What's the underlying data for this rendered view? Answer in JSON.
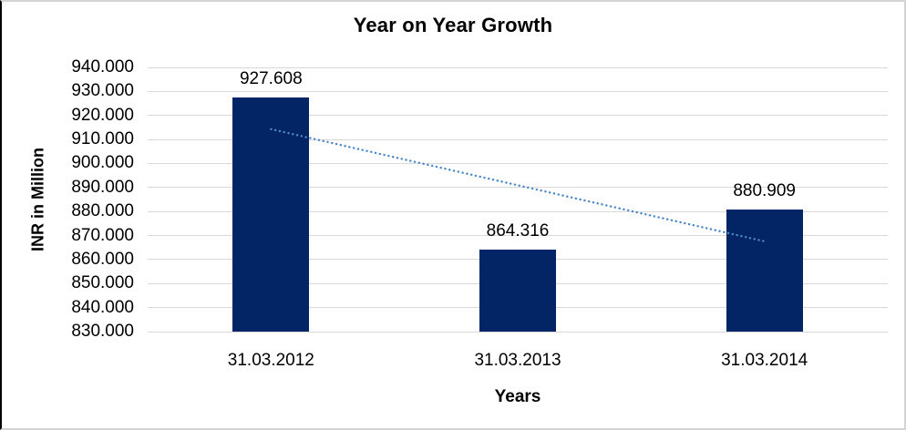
{
  "chart_data": {
    "type": "bar",
    "title": "Year on Year Growth",
    "xlabel": "Years",
    "ylabel": "INR in Million",
    "categories": [
      "31.03.2012",
      "31.03.2013",
      "31.03.2014"
    ],
    "values": [
      927.608,
      864.316,
      880.909
    ],
    "value_labels": [
      "927.608",
      "864.316",
      "880.909"
    ],
    "ylim": [
      830,
      940
    ],
    "ytick_step": 10,
    "ytick_labels": [
      "940.000",
      "930.000",
      "920.000",
      "910.000",
      "900.000",
      "890.000",
      "880.000",
      "870.000",
      "860.000",
      "850.000",
      "840.000",
      "830.000"
    ],
    "grid": true,
    "legend": "none",
    "trendline": {
      "type": "linear",
      "style": "dotted"
    },
    "colors": {
      "bar": "#032465",
      "trendline": "#4e86c6",
      "gridline": "#d9d9d9",
      "text": "#000000",
      "frame_border": "#d4d4d4",
      "frame_border_left": "#000000"
    }
  }
}
